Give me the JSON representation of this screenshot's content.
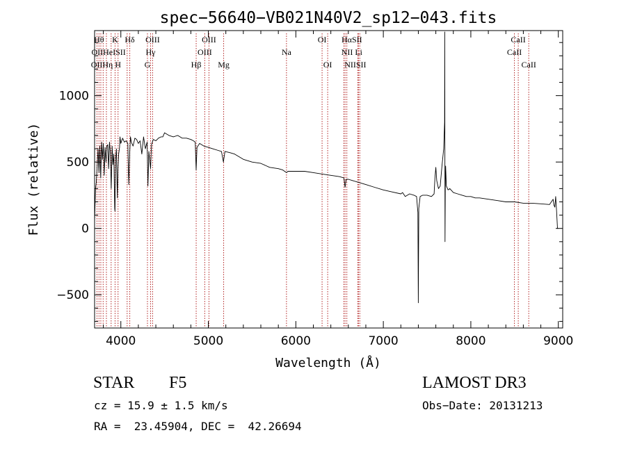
{
  "chart_data": {
    "type": "line",
    "title": "spec−56640−VB021N40V2_sp12−043.fits",
    "xlabel": "Wavelength (Å)",
    "ylabel": "Flux (relative)",
    "xlim": [
      3700,
      9050
    ],
    "ylim": [
      -750,
      1490
    ],
    "x_ticks": [
      4000,
      5000,
      6000,
      7000,
      8000,
      9000
    ],
    "y_ticks": [
      -500,
      0,
      500,
      1000
    ],
    "y_tick_labels": [
      "−500",
      "0",
      "500",
      "1000"
    ],
    "grid": false,
    "series": [
      {
        "name": "spectrum",
        "x": [
          3700,
          3710,
          3720,
          3730,
          3740,
          3750,
          3760,
          3770,
          3780,
          3790,
          3800,
          3810,
          3820,
          3830,
          3840,
          3850,
          3860,
          3870,
          3880,
          3890,
          3900,
          3910,
          3920,
          3930,
          3933,
          3940,
          3950,
          3960,
          3968,
          3975,
          3985,
          3990,
          4000,
          4020,
          4040,
          4060,
          4080,
          4090,
          4102,
          4110,
          4120,
          4140,
          4160,
          4180,
          4200,
          4220,
          4240,
          4260,
          4280,
          4300,
          4310,
          4320,
          4340,
          4350,
          4370,
          4400,
          4430,
          4460,
          4480,
          4500,
          4550,
          4600,
          4650,
          4700,
          4750,
          4800,
          4830,
          4850,
          4861,
          4870,
          4900,
          4950,
          5000,
          5050,
          5100,
          5150,
          5172,
          5190,
          5250,
          5300,
          5400,
          5500,
          5600,
          5700,
          5800,
          5850,
          5893,
          5910,
          6000,
          6100,
          6200,
          6300,
          6400,
          6500,
          6550,
          6563,
          6575,
          6600,
          6700,
          6800,
          6900,
          7000,
          7100,
          7200,
          7220,
          7250,
          7300,
          7350,
          7380,
          7395,
          7400,
          7405,
          7420,
          7450,
          7500,
          7550,
          7580,
          7590,
          7600,
          7610,
          7630,
          7650,
          7670,
          7690,
          7700,
          7702,
          7705,
          7708,
          7712,
          7720,
          7740,
          7760,
          7800,
          7850,
          7900,
          7950,
          8000,
          8050,
          8100,
          8200,
          8300,
          8400,
          8500,
          8600,
          8700,
          8800,
          8900,
          8940,
          8950,
          8960,
          8970,
          8980,
          8990,
          9000
        ],
        "y": [
          50,
          300,
          350,
          480,
          600,
          420,
          620,
          380,
          650,
          520,
          640,
          400,
          610,
          500,
          620,
          630,
          450,
          650,
          580,
          300,
          620,
          480,
          560,
          150,
          130,
          520,
          600,
          230,
          450,
          560,
          610,
          690,
          640,
          680,
          650,
          660,
          640,
          330,
          580,
          690,
          650,
          620,
          680,
          670,
          640,
          660,
          560,
          690,
          600,
          650,
          320,
          580,
          450,
          630,
          670,
          660,
          680,
          690,
          690,
          720,
          700,
          690,
          700,
          680,
          680,
          670,
          660,
          650,
          440,
          610,
          640,
          620,
          610,
          600,
          590,
          580,
          500,
          580,
          570,
          560,
          520,
          500,
          490,
          460,
          450,
          440,
          420,
          430,
          430,
          430,
          420,
          410,
          400,
          390,
          380,
          310,
          370,
          370,
          350,
          330,
          310,
          290,
          275,
          260,
          270,
          240,
          260,
          250,
          240,
          120,
          -560,
          150,
          240,
          250,
          250,
          240,
          260,
          380,
          460,
          360,
          300,
          320,
          470,
          600,
          800,
          1480,
          -100,
          300,
          470,
          320,
          290,
          300,
          270,
          260,
          250,
          240,
          240,
          230,
          230,
          220,
          210,
          200,
          200,
          190,
          190,
          185,
          180,
          220,
          175,
          160,
          240,
          130,
          0,
          0
        ]
      }
    ],
    "line_markers": [
      {
        "wavelength": 3727,
        "label": "OII"
      },
      {
        "wavelength": 3750,
        "label": "Hθ"
      },
      {
        "wavelength": 3771,
        "label": "OII"
      },
      {
        "wavelength": 3798,
        "label": "Hη"
      },
      {
        "wavelength": 3835,
        "label": "He"
      },
      {
        "wavelength": 3889,
        "label": "Hη"
      },
      {
        "wavelength": 3934,
        "label": "K"
      },
      {
        "wavelength": 3968,
        "label": "H"
      },
      {
        "wavelength": 4072,
        "label": "SII"
      },
      {
        "wavelength": 4102,
        "label": "Hδ"
      },
      {
        "wavelength": 4304,
        "label": "G"
      },
      {
        "wavelength": 4340,
        "label": "Hγ"
      },
      {
        "wavelength": 4363,
        "label": "OIII"
      },
      {
        "wavelength": 4861,
        "label": "Hβ"
      },
      {
        "wavelength": 4959,
        "label": "OIII"
      },
      {
        "wavelength": 5007,
        "label": "OIII"
      },
      {
        "wavelength": 5175,
        "label": "Mg"
      },
      {
        "wavelength": 5893,
        "label": "Na"
      },
      {
        "wavelength": 6300,
        "label": "OI"
      },
      {
        "wavelength": 6364,
        "label": "OI"
      },
      {
        "wavelength": 6548,
        "label": "NII"
      },
      {
        "wavelength": 6563,
        "label": "Hα"
      },
      {
        "wavelength": 6583,
        "label": "NII"
      },
      {
        "wavelength": 6708,
        "label": "Li"
      },
      {
        "wavelength": 6716,
        "label": "SII"
      },
      {
        "wavelength": 6731,
        "label": "SII"
      },
      {
        "wavelength": 8498,
        "label": "CaII"
      },
      {
        "wavelength": 8542,
        "label": "CaII"
      },
      {
        "wavelength": 8662,
        "label": "CaII"
      }
    ],
    "line_label_rows": [
      [
        {
          "text": "Hθ",
          "wavelength": 3750
        },
        {
          "text": "K",
          "wavelength": 3934
        },
        {
          "text": "Hδ",
          "wavelength": 4102
        },
        {
          "text": "OIII",
          "wavelength": 4363
        },
        {
          "text": "OIII",
          "wavelength": 5007
        },
        {
          "text": "OI",
          "wavelength": 6300
        },
        {
          "text": "HαSII",
          "wavelength": 6640
        },
        {
          "text": "CaII",
          "wavelength": 8542
        }
      ],
      [
        {
          "text": "OIIHeISII",
          "wavelength": 3860
        },
        {
          "text": "Hγ",
          "wavelength": 4340
        },
        {
          "text": "OIII",
          "wavelength": 4959
        },
        {
          "text": "Na",
          "wavelength": 5893
        },
        {
          "text": "NII Li",
          "wavelength": 6640
        },
        {
          "text": "CaII",
          "wavelength": 8498
        }
      ],
      [
        {
          "text": "OIIHη H",
          "wavelength": 3830
        },
        {
          "text": "G",
          "wavelength": 4304
        },
        {
          "text": "Hβ",
          "wavelength": 4861
        },
        {
          "text": "Mg",
          "wavelength": 5175
        },
        {
          "text": "OI",
          "wavelength": 6364
        },
        {
          "text": "NIISII",
          "wavelength": 6680
        },
        {
          "text": "CaII",
          "wavelength": 8662
        }
      ]
    ]
  },
  "info": {
    "object_class": "STAR",
    "subclass": "F5",
    "survey": "LAMOST DR3",
    "redshift_line": "cz = 15.9 ± 1.5 km/s",
    "obs_date_line": "Obs−Date: 20131213",
    "coords_line": "RA =  23.45904, DEC =  42.26694"
  },
  "colors": {
    "axes": "#000000",
    "marker_lines": "#b22222",
    "spectrum": "#000000",
    "background": "#ffffff"
  }
}
